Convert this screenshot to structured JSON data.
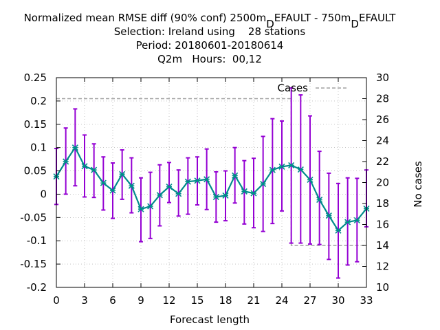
{
  "chart_data": {
    "type": "line",
    "title_lines": [
      "Normalized mean RMSE diff (90% conf) 2500m_DEFAULT - 750m_DEFAULT",
      "Selection: Ireland using    28 stations",
      "Period: 20180601-20180614",
      "Q2m   Hours:  00,12"
    ],
    "xlabel": "Forecast length",
    "ylabel": "",
    "y2label": "No cases",
    "xlim": [
      0,
      33
    ],
    "ylim": [
      -0.2,
      0.25
    ],
    "y2lim": [
      10,
      30
    ],
    "x_ticks": [
      "0",
      "3",
      "6",
      "9",
      "12",
      "15",
      "18",
      "21",
      "24",
      "27",
      "30",
      "33"
    ],
    "y_ticks": [
      "0.25",
      "0.2",
      "0.15",
      "0.1",
      "0.05",
      "0",
      "-0.05",
      "-0.1",
      "-0.15",
      "-0.2"
    ],
    "y2_ticks": [
      "30",
      "28",
      "26",
      "24",
      "22",
      "20",
      "18",
      "16",
      "14",
      "12",
      "10"
    ],
    "grid": true,
    "legend": {
      "label": "Cases",
      "placement": "top-right"
    },
    "series": [
      {
        "color": "#008b8b",
        "errorbar_color": "#9400d3",
        "x": [
          0,
          1,
          2,
          3,
          4,
          5,
          6,
          7,
          8,
          9,
          10,
          11,
          12,
          13,
          14,
          15,
          16,
          17,
          18,
          19,
          20,
          21,
          22,
          23,
          24,
          25,
          26,
          27,
          28,
          29,
          30,
          31,
          32,
          33
        ],
        "y": [
          0.038,
          0.07,
          0.1,
          0.06,
          0.052,
          0.024,
          0.008,
          0.043,
          0.018,
          -0.032,
          -0.026,
          -0.002,
          0.016,
          0.001,
          0.027,
          0.029,
          0.032,
          -0.006,
          -0.003,
          0.04,
          0.006,
          0.002,
          0.022,
          0.052,
          0.059,
          0.062,
          0.053,
          0.031,
          -0.012,
          -0.046,
          -0.078,
          -0.06,
          -0.056,
          -0.031
        ],
        "low": [
          -0.022,
          0.0,
          0.018,
          -0.006,
          -0.007,
          -0.034,
          -0.052,
          -0.011,
          -0.04,
          -0.102,
          -0.095,
          -0.068,
          -0.018,
          -0.047,
          -0.043,
          -0.023,
          -0.033,
          -0.06,
          -0.057,
          -0.019,
          -0.064,
          -0.072,
          -0.08,
          -0.063,
          -0.036,
          -0.105,
          -0.105,
          -0.107,
          -0.108,
          -0.14,
          -0.18,
          -0.152,
          -0.145,
          -0.07
        ],
        "high": [
          0.098,
          0.142,
          0.183,
          0.127,
          0.108,
          0.08,
          0.067,
          0.095,
          0.078,
          0.035,
          0.047,
          0.063,
          0.068,
          0.052,
          0.078,
          0.08,
          0.097,
          0.048,
          0.05,
          0.1,
          0.072,
          0.077,
          0.124,
          0.162,
          0.157,
          0.228,
          0.213,
          0.168,
          0.092,
          0.045,
          0.023,
          0.035,
          0.034,
          0.052
        ]
      }
    ],
    "cases": {
      "color": "#a0a0a0",
      "x": [
        0,
        1,
        2,
        3,
        4,
        5,
        6,
        7,
        8,
        9,
        10,
        11,
        12,
        13,
        14,
        15,
        16,
        17,
        18,
        19,
        20,
        21,
        22,
        23,
        24,
        25,
        26,
        27,
        28,
        29,
        30,
        31,
        32,
        33
      ],
      "values": [
        28,
        28,
        28,
        28,
        28,
        28,
        28,
        28,
        28,
        28,
        28,
        28,
        28,
        28,
        28,
        28,
        28,
        28,
        28,
        28,
        28,
        28,
        28,
        28,
        28,
        14,
        14,
        14,
        14,
        14,
        14,
        14,
        14,
        14
      ]
    }
  }
}
